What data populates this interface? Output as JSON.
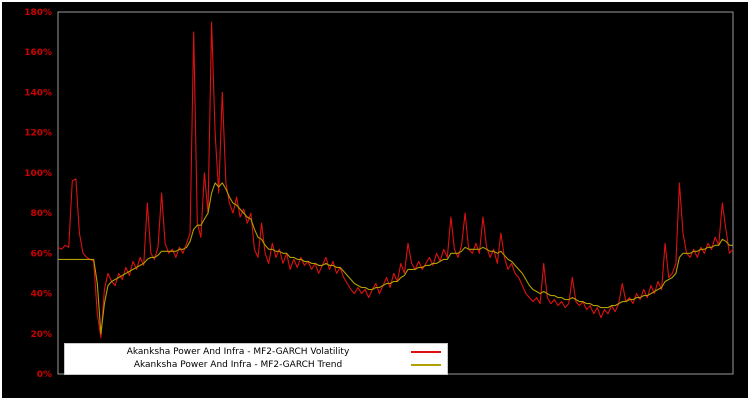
{
  "chart_data": {
    "type": "line",
    "title": "",
    "xlabel": "",
    "ylabel": "",
    "ylim": [
      0,
      180
    ],
    "y_ticks": [
      "0%",
      "20%",
      "40%",
      "60%",
      "80%",
      "100%",
      "120%",
      "140%",
      "160%",
      "180%"
    ],
    "grid": false,
    "background_color": "#000000",
    "axis_label_color": "#cc0000",
    "axis_border_color": "#9a9a9a",
    "legend_position": "bottom-left",
    "series": [
      {
        "name": "Akanksha Power And Infra - MF2-GARCH Volatility",
        "color": "#dd1111",
        "values": [
          63,
          62,
          64,
          63,
          96,
          97,
          70,
          60,
          58,
          57,
          56,
          30,
          18,
          42,
          50,
          46,
          44,
          50,
          47,
          53,
          49,
          56,
          52,
          58,
          54,
          85,
          60,
          57,
          63,
          90,
          65,
          60,
          62,
          58,
          63,
          60,
          65,
          70,
          170,
          75,
          68,
          100,
          80,
          175,
          120,
          90,
          140,
          95,
          85,
          80,
          88,
          78,
          82,
          75,
          80,
          62,
          58,
          75,
          60,
          55,
          65,
          58,
          62,
          55,
          60,
          52,
          57,
          53,
          58,
          54,
          56,
          52,
          55,
          50,
          54,
          58,
          52,
          56,
          50,
          53,
          48,
          45,
          42,
          40,
          43,
          40,
          42,
          38,
          42,
          45,
          40,
          44,
          48,
          43,
          50,
          46,
          55,
          50,
          65,
          55,
          52,
          56,
          52,
          55,
          58,
          54,
          60,
          56,
          62,
          58,
          78,
          62,
          58,
          64,
          80,
          62,
          60,
          65,
          60,
          78,
          63,
          58,
          62,
          55,
          70,
          58,
          52,
          55,
          50,
          48,
          44,
          40,
          38,
          36,
          38,
          35,
          55,
          38,
          35,
          37,
          34,
          36,
          33,
          35,
          48,
          36,
          34,
          36,
          32,
          34,
          30,
          33,
          28,
          32,
          30,
          34,
          31,
          35,
          45,
          36,
          38,
          35,
          40,
          37,
          42,
          38,
          44,
          40,
          46,
          42,
          65,
          48,
          50,
          55,
          95,
          70,
          60,
          58,
          62,
          58,
          63,
          60,
          65,
          62,
          68,
          64,
          85,
          72,
          60,
          62
        ]
      },
      {
        "name": "Akanksha Power And Infra - MF2-GARCH Trend",
        "color": "#b0a000",
        "values": [
          57,
          57,
          57,
          57,
          57,
          57,
          57,
          57,
          57,
          57,
          57,
          45,
          20,
          35,
          44,
          46,
          47,
          48,
          49,
          50,
          51,
          52,
          53,
          54,
          55,
          57,
          58,
          58,
          59,
          61,
          61,
          61,
          61,
          61,
          62,
          62,
          63,
          66,
          72,
          74,
          74,
          77,
          80,
          90,
          95,
          93,
          95,
          92,
          88,
          85,
          84,
          82,
          80,
          78,
          77,
          72,
          68,
          67,
          64,
          62,
          62,
          61,
          61,
          60,
          60,
          58,
          58,
          57,
          57,
          56,
          56,
          55,
          55,
          54,
          54,
          55,
          54,
          54,
          53,
          53,
          51,
          49,
          47,
          45,
          44,
          43,
          43,
          42,
          42,
          43,
          43,
          44,
          45,
          45,
          46,
          46,
          48,
          49,
          52,
          52,
          52,
          53,
          53,
          54,
          54,
          55,
          55,
          56,
          57,
          57,
          60,
          60,
          60,
          61,
          63,
          62,
          62,
          62,
          62,
          63,
          62,
          61,
          61,
          60,
          61,
          59,
          57,
          56,
          54,
          52,
          50,
          47,
          44,
          42,
          41,
          40,
          41,
          40,
          39,
          39,
          38,
          38,
          37,
          37,
          38,
          37,
          36,
          36,
          35,
          35,
          34,
          34,
          33,
          33,
          33,
          34,
          34,
          35,
          36,
          36,
          37,
          37,
          38,
          38,
          39,
          39,
          40,
          41,
          42,
          43,
          46,
          47,
          48,
          50,
          58,
          60,
          60,
          60,
          61,
          61,
          62,
          62,
          63,
          63,
          64,
          64,
          67,
          66,
          64,
          64
        ]
      }
    ]
  }
}
